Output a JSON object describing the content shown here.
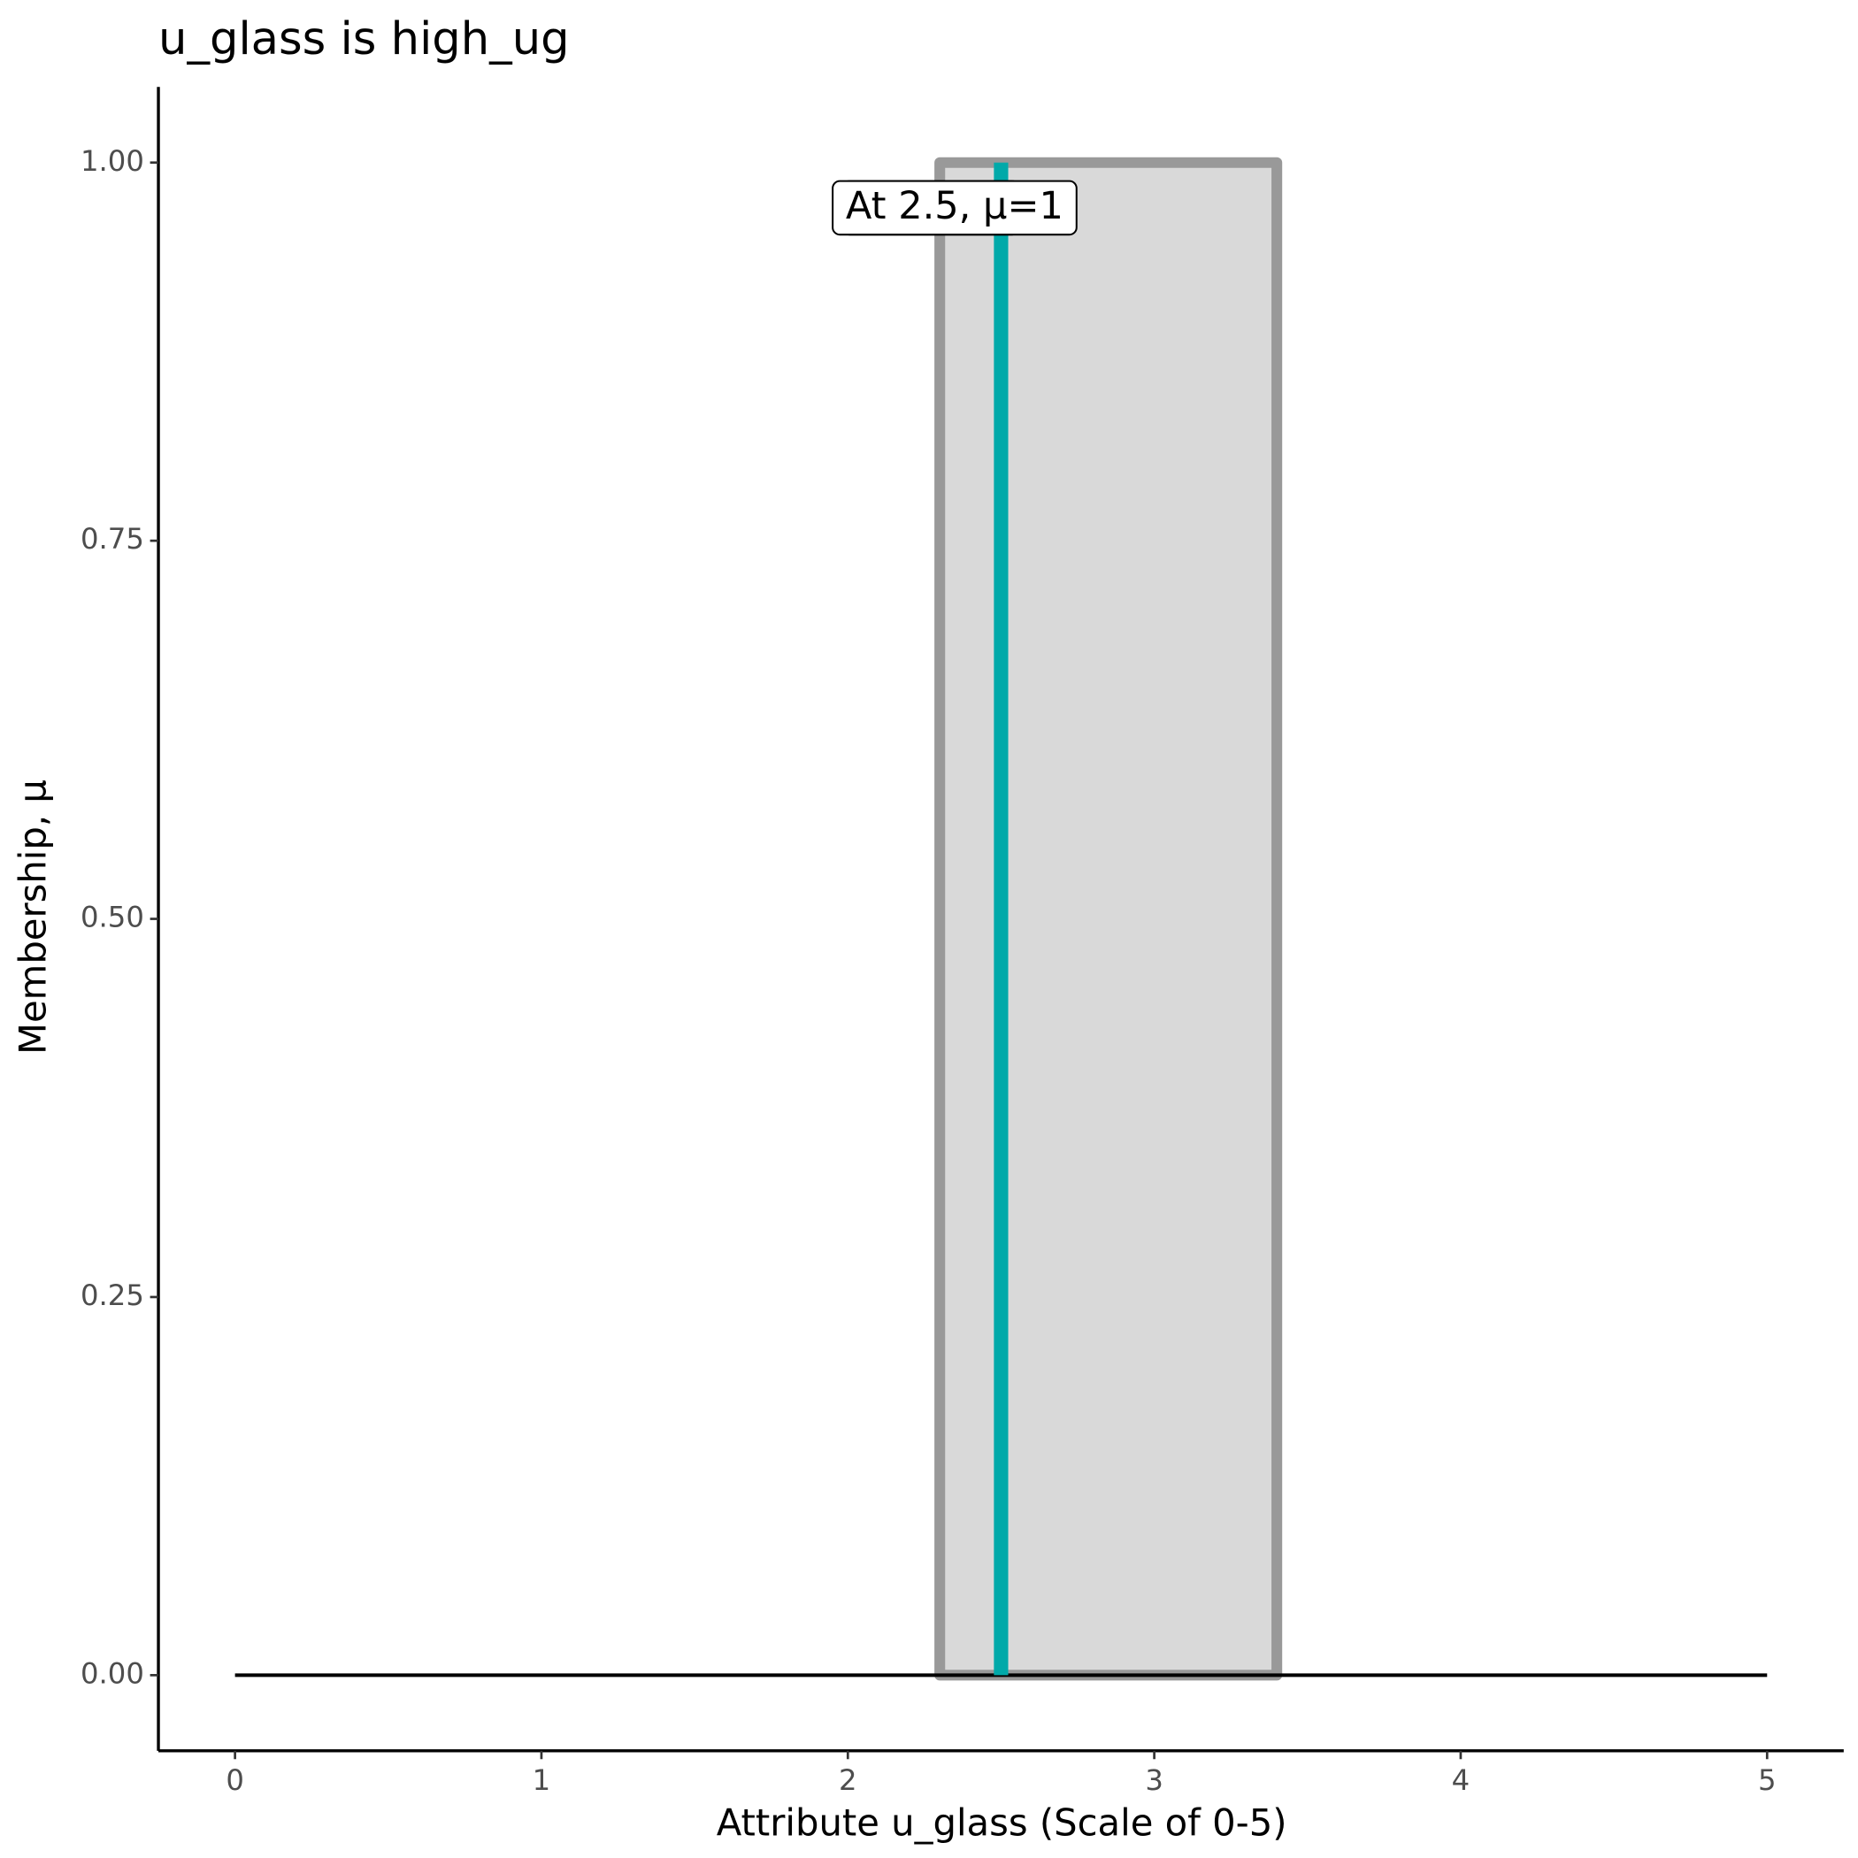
{
  "chart_data": {
    "type": "membership",
    "title": "u_glass is high_ug",
    "x_label": "Attribute u_glass (Scale of 0-5)",
    "y_label": "Membership, μ",
    "xlim": [
      -0.25,
      5.25
    ],
    "ylim": [
      -0.05,
      1.05
    ],
    "xticks": [
      0,
      1,
      2,
      3,
      4,
      5
    ],
    "yticks": [
      {
        "value": 0,
        "label": "0.00"
      },
      {
        "value": 0.25,
        "label": "0.25"
      },
      {
        "value": 0.5,
        "label": "0.50"
      },
      {
        "value": 0.75,
        "label": "0.75"
      },
      {
        "value": 1,
        "label": "1.00"
      }
    ],
    "grid": false,
    "membership": {
      "name": "high_ug",
      "x": [
        2.3,
        2.3,
        3.4,
        3.4
      ],
      "values": [
        0,
        1,
        1,
        0
      ],
      "color": "#999999",
      "fill": "#d9d9d9"
    },
    "baseline": {
      "x": [
        0,
        5
      ],
      "values": [
        0,
        0
      ],
      "color": "#000000"
    },
    "marker": {
      "x": 2.5,
      "value": 1,
      "color": "#00a9a9",
      "label": "At 2.5, μ=1"
    }
  }
}
